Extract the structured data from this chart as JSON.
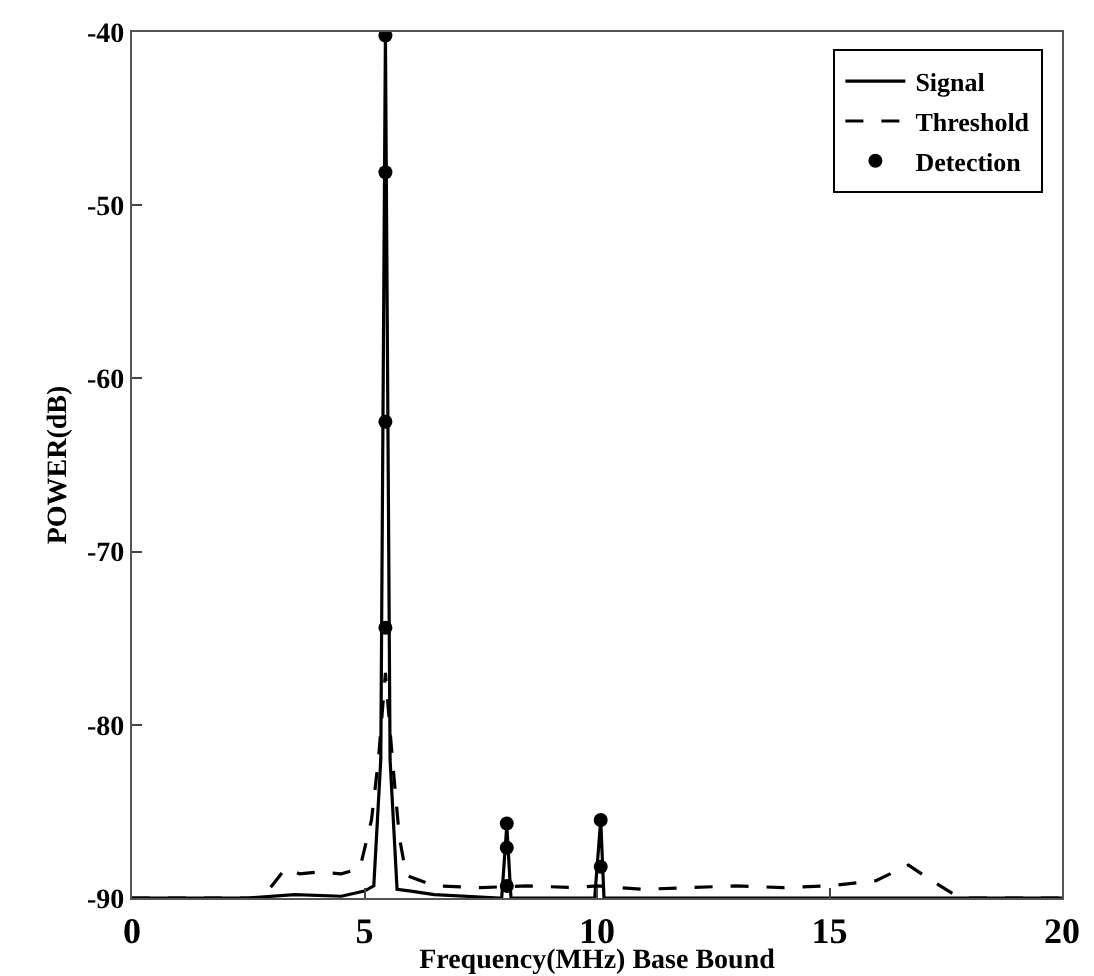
{
  "chart_data": {
    "type": "line",
    "xlabel": "Frequency(MHz) Base Bound",
    "ylabel": "POWER(dB)",
    "xlim": [
      0,
      20
    ],
    "xticks": [
      0,
      5,
      10,
      15,
      20
    ],
    "ylim": [
      -90,
      -40
    ],
    "yticks": [
      -90,
      -80,
      -70,
      -60,
      -50,
      -40
    ],
    "grid": false,
    "legend": "top right",
    "series": [
      {
        "name": "Signal",
        "color": "#000000",
        "line_style": "solid",
        "marker": "none",
        "x": [
          0,
          2.5,
          3.5,
          4.5,
          5.0,
          5.2,
          5.35,
          5.45,
          5.55,
          5.7,
          6.0,
          6.5,
          7.9,
          7.95,
          8.06,
          8.15,
          8.2,
          9.9,
          9.95,
          10.08,
          10.15,
          10.2,
          12,
          15,
          20
        ],
        "values": [
          -90,
          -90,
          -89.8,
          -89.9,
          -89.6,
          -89.3,
          -82,
          -40.2,
          -82,
          -89.5,
          -89.6,
          -89.8,
          -90,
          -90,
          -85.8,
          -90,
          -90,
          -90,
          -90,
          -85.5,
          -90,
          -90,
          -90,
          -90,
          -90
        ]
      },
      {
        "name": "Threshold",
        "color": "#000000",
        "line_style": "dashed",
        "marker": "none",
        "x": [
          0,
          2.8,
          3.3,
          3.6,
          4.0,
          4.5,
          4.9,
          5.15,
          5.3,
          5.45,
          5.6,
          5.75,
          5.9,
          6.5,
          7.5,
          8.5,
          9.5,
          10,
          11,
          12,
          13,
          14,
          15,
          16,
          16.7,
          17.2,
          17.8,
          20
        ],
        "values": [
          -90,
          -90,
          -88.3,
          -88.6,
          -88.5,
          -88.6,
          -88.3,
          -85.5,
          -82,
          -77,
          -82,
          -86.5,
          -88.7,
          -89.3,
          -89.4,
          -89.3,
          -89.4,
          -89.3,
          -89.5,
          -89.4,
          -89.3,
          -89.4,
          -89.3,
          -89,
          -88.1,
          -89,
          -90,
          -90
        ]
      },
      {
        "name": "Detection",
        "type": "scatter",
        "color": "#000000",
        "marker": "circle",
        "x": [
          5.45,
          5.45,
          5.45,
          5.45,
          8.06,
          8.06,
          8.06,
          10.08,
          10.08
        ],
        "values": [
          -40.2,
          -48.1,
          -62.5,
          -74.4,
          -85.7,
          -87.1,
          -89.3,
          -85.5,
          -88.2
        ]
      }
    ]
  }
}
